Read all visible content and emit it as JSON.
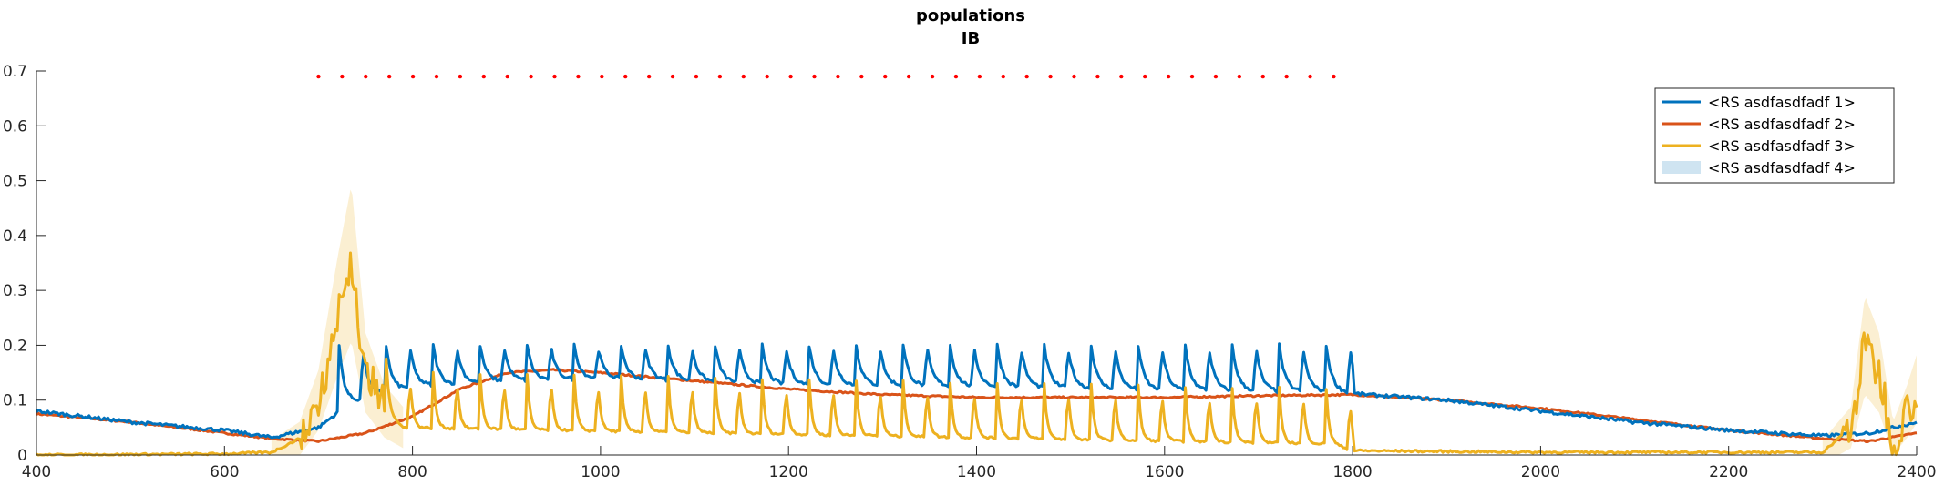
{
  "chart_data": {
    "type": "line",
    "title": "populations",
    "subtitle": "IB",
    "xlabel": "",
    "ylabel": "",
    "xlim": [
      400,
      2400
    ],
    "ylim": [
      0,
      0.7
    ],
    "xticks": [
      400,
      600,
      800,
      1000,
      1200,
      1400,
      1600,
      1800,
      2000,
      2200,
      2400
    ],
    "xtick_labels": [
      "400",
      "600",
      "800",
      "1000",
      "1200",
      "1400",
      "1600",
      "1800",
      "2000",
      "2200",
      "2400"
    ],
    "yticks": [
      0,
      0.1,
      0.2,
      0.3,
      0.4,
      0.5,
      0.6,
      0.7
    ],
    "ytick_labels": [
      "0",
      "0.1",
      "0.2",
      "0.3",
      "0.4",
      "0.5",
      "0.6",
      "0.7"
    ],
    "grid": false,
    "legend_position": "top-right",
    "markers": {
      "color": "#ff0000",
      "y": 0.69,
      "x_start": 700,
      "x_end": 1780,
      "count": 44
    },
    "pulses": {
      "x_start": 720,
      "period": 25,
      "count": 44,
      "x_end": 1790
    },
    "series": [
      {
        "name": "<RS asdfasdfadf 1>",
        "color": "#0072bd",
        "style": "line",
        "keypoints": [
          [
            400,
            0.08
          ],
          [
            500,
            0.06
          ],
          [
            600,
            0.045
          ],
          [
            650,
            0.032
          ],
          [
            700,
            0.05
          ],
          [
            730,
            0.09
          ],
          [
            760,
            0.11
          ],
          [
            790,
            0.12
          ],
          [
            800,
            0.125
          ],
          [
            900,
            0.135
          ],
          [
            1000,
            0.14
          ],
          [
            1100,
            0.135
          ],
          [
            1200,
            0.128
          ],
          [
            1400,
            0.125
          ],
          [
            1600,
            0.118
          ],
          [
            1780,
            0.115
          ],
          [
            1800,
            0.112
          ],
          [
            1900,
            0.1
          ],
          [
            2000,
            0.08
          ],
          [
            2100,
            0.06
          ],
          [
            2200,
            0.045
          ],
          [
            2300,
            0.035
          ],
          [
            2350,
            0.04
          ],
          [
            2400,
            0.06
          ]
        ],
        "pulse_peak": 0.2
      },
      {
        "name": "<RS asdfasdfadf 2>",
        "color": "#d95319",
        "style": "line",
        "keypoints": [
          [
            400,
            0.075
          ],
          [
            500,
            0.06
          ],
          [
            600,
            0.04
          ],
          [
            650,
            0.03
          ],
          [
            700,
            0.025
          ],
          [
            750,
            0.04
          ],
          [
            800,
            0.07
          ],
          [
            850,
            0.12
          ],
          [
            900,
            0.15
          ],
          [
            950,
            0.155
          ],
          [
            1000,
            0.15
          ],
          [
            1100,
            0.135
          ],
          [
            1200,
            0.12
          ],
          [
            1300,
            0.11
          ],
          [
            1400,
            0.105
          ],
          [
            1500,
            0.105
          ],
          [
            1600,
            0.105
          ],
          [
            1700,
            0.108
          ],
          [
            1800,
            0.11
          ],
          [
            1900,
            0.1
          ],
          [
            2000,
            0.085
          ],
          [
            2100,
            0.065
          ],
          [
            2200,
            0.045
          ],
          [
            2300,
            0.03
          ],
          [
            2350,
            0.025
          ],
          [
            2400,
            0.04
          ]
        ]
      },
      {
        "name": "<RS asdfasdfadf 3>",
        "color": "#edb120",
        "style": "line",
        "keypoints": [
          [
            400,
            0.0
          ],
          [
            600,
            0.002
          ],
          [
            650,
            0.005
          ],
          [
            680,
            0.03
          ],
          [
            700,
            0.1
          ],
          [
            720,
            0.25
          ],
          [
            735,
            0.35
          ],
          [
            750,
            0.15
          ],
          [
            770,
            0.08
          ],
          [
            790,
            0.05
          ],
          [
            1780,
            0.02
          ],
          [
            1800,
            0.008
          ],
          [
            2000,
            0.005
          ],
          [
            2300,
            0.005
          ],
          [
            2330,
            0.05
          ],
          [
            2345,
            0.2
          ],
          [
            2360,
            0.15
          ],
          [
            2375,
            0.03
          ],
          [
            2390,
            0.08
          ],
          [
            2400,
            0.12
          ]
        ],
        "pulse_peak": 0.1
      },
      {
        "name": "<RS asdfasdfadf 4>",
        "color": "#cfe4f1",
        "style": "band"
      }
    ]
  }
}
